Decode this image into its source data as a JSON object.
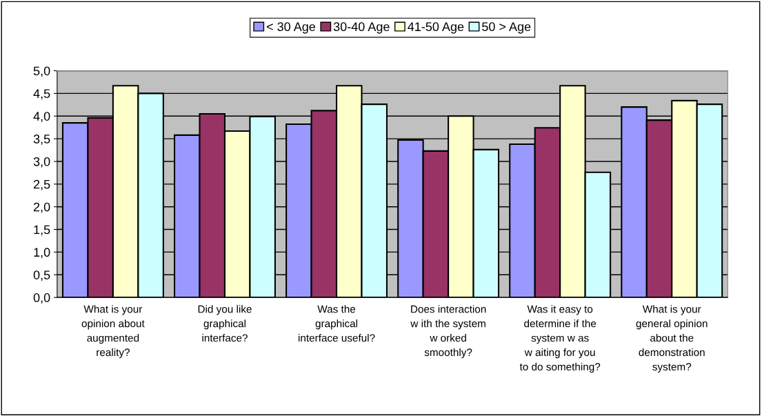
{
  "chart_data": {
    "type": "bar",
    "categories": [
      "What is your\nopinion about\naugmented\nreality?",
      "Did you like\ngraphical\ninterface?",
      "Was the\ngraphical\ninterface useful?",
      "Does interaction\nw ith the system\nw orked\nsmoothly?",
      "Was it easy to\ndetermine if the\nsystem w as\nw aiting for you\nto do something?",
      "What is your\ngeneral opinion\nabout the\ndemonstration\nsystem?"
    ],
    "series": [
      {
        "name": "< 30 Age",
        "color": "#9999ff",
        "values": [
          3.85,
          3.58,
          3.82,
          3.47,
          3.38,
          4.2
        ]
      },
      {
        "name": "30-40 Age",
        "color": "#993366",
        "values": [
          3.96,
          4.05,
          4.12,
          3.23,
          3.74,
          3.91
        ]
      },
      {
        "name": "41-50 Age",
        "color": "#ffffcc",
        "values": [
          4.67,
          3.67,
          4.67,
          4.0,
          4.67,
          4.34
        ]
      },
      {
        "name": "50 > Age",
        "color": "#ccffff",
        "values": [
          4.5,
          3.99,
          4.26,
          3.26,
          2.76,
          4.26
        ]
      }
    ],
    "ylim": [
      0,
      5
    ],
    "yticks": [
      {
        "value": 0,
        "label": "0,0"
      },
      {
        "value": 0.5,
        "label": "0,5"
      },
      {
        "value": 1,
        "label": "1,0"
      },
      {
        "value": 1.5,
        "label": "1,5"
      },
      {
        "value": 2,
        "label": "2,0"
      },
      {
        "value": 2.5,
        "label": "2,5"
      },
      {
        "value": 3,
        "label": "3,0"
      },
      {
        "value": 3.5,
        "label": "3,5"
      },
      {
        "value": 4,
        "label": "4,0"
      },
      {
        "value": 4.5,
        "label": "4,5"
      },
      {
        "value": 5,
        "label": "5,0"
      }
    ],
    "grid": "y",
    "legend": "top"
  }
}
